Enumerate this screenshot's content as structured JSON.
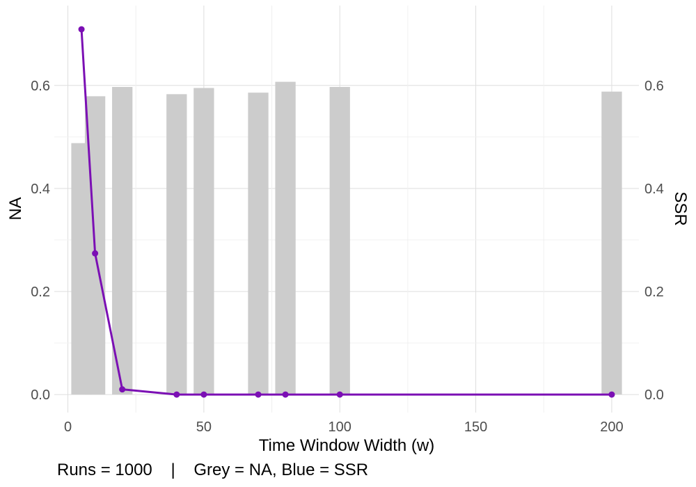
{
  "chart_data": {
    "type": "bar+line",
    "xlabel": "Time Window Width (w)",
    "ylabel_left": "NA",
    "ylabel_right": "SSR",
    "caption": "Runs = 1000    |    Grey = NA, Blue = SSR",
    "xlim": [
      -5,
      210
    ],
    "ylim": [
      -0.035,
      0.755
    ],
    "x_ticks": [
      0,
      50,
      100,
      150,
      200
    ],
    "x_tick_labels": [
      "0",
      "50",
      "100",
      "150",
      "200"
    ],
    "y_ticks": [
      0.0,
      0.2,
      0.4,
      0.6
    ],
    "y_tick_labels": [
      "0.0",
      "0.2",
      "0.4",
      "0.6"
    ],
    "y_ticks_right": [
      0.0,
      0.2,
      0.4,
      0.6
    ],
    "y_tick_labels_right": [
      "0.0",
      "0.2",
      "0.4",
      "0.6"
    ],
    "grid": true,
    "bars": {
      "name": "NA",
      "color": "#cccccc",
      "bar_width": 7.5,
      "x": [
        5,
        10,
        20,
        40,
        50,
        70,
        80,
        100,
        200
      ],
      "values": [
        0.488,
        0.579,
        0.597,
        0.583,
        0.595,
        0.586,
        0.607,
        0.597,
        0.588
      ]
    },
    "line": {
      "name": "SSR",
      "color": "#7b0fb4",
      "x": [
        5,
        10,
        20,
        40,
        50,
        70,
        80,
        100,
        200
      ],
      "values": [
        0.709,
        0.274,
        0.01,
        0.0,
        0.0,
        0.0,
        0.0,
        0.0,
        0.0
      ]
    }
  }
}
